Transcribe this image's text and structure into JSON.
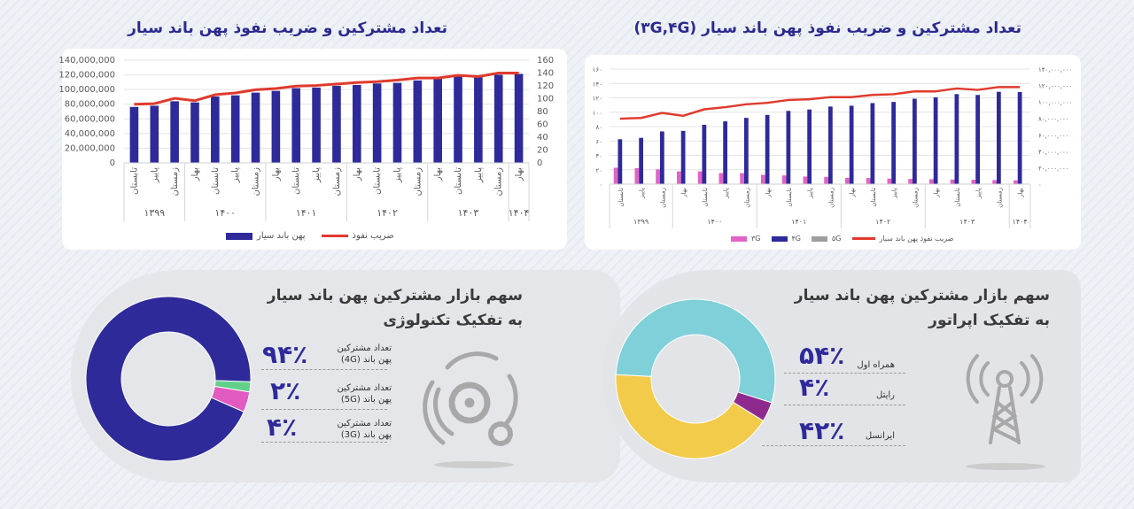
{
  "titles": {
    "left_chart": "تعداد مشترکین و ضریب نفوذ پهن باند سیار",
    "right_chart": "تعداد مشترکین و ضریب نفوذ پهن باند سیار (۳G,۴G)"
  },
  "colors": {
    "bar_total": "#2e2a9a",
    "line": "#e03a2c",
    "g3": "#e064c6",
    "g4": "#2e2a9a",
    "g5": "#9e9e9e",
    "title": "#2b2a8f",
    "teal": "#7fd0d8",
    "purple": "#8e2a8e",
    "yellow": "#f2cb4a",
    "green": "#62d08a",
    "pink": "#e25bc0"
  },
  "chart_data": [
    {
      "type": "bar+line",
      "title": "تعداد مشترکین و ضریب نفوذ پهن باند سیار",
      "categories": [
        "تابستان",
        "پاییز",
        "زمستان",
        "بهار",
        "تابستان",
        "پاییز",
        "زمستان",
        "بهار",
        "تابستان",
        "پاییز",
        "زمستان",
        "بهار",
        "تابستان",
        "پاییز",
        "زمستان",
        "بهار",
        "تابستان",
        "پاییز",
        "زمستان",
        "بهار"
      ],
      "groups": [
        {
          "label": "۱۳۹۹",
          "count": 3
        },
        {
          "label": "۱۴۰۰",
          "count": 4
        },
        {
          "label": "۱۴۰۱",
          "count": 4
        },
        {
          "label": "۱۴۰۲",
          "count": 4
        },
        {
          "label": "۱۴۰۳",
          "count": 4
        },
        {
          "label": "۱۴۰۴",
          "count": 1
        }
      ],
      "left_axis": {
        "range": [
          0,
          140000000
        ],
        "ticks": [
          "0",
          "20,000,000",
          "40,000,000",
          "60,000,000",
          "80,000,000",
          "100,000,000",
          "120,000,000",
          "140,000,000"
        ]
      },
      "right_axis": {
        "range": [
          0,
          160
        ],
        "ticks": [
          "0",
          "20",
          "40",
          "60",
          "80",
          "100",
          "120",
          "140",
          "160"
        ]
      },
      "series": [
        {
          "name": "پهن باند سیار",
          "type": "bar",
          "axis": "left",
          "color": "#2e2a9a",
          "values": [
            76300000,
            77900000,
            84000000,
            82400000,
            90500000,
            92100000,
            95800000,
            98200000,
            101900000,
            102700000,
            105100000,
            106300000,
            108300000,
            109100000,
            112400000,
            114500000,
            117700000,
            116900000,
            120100000,
            121300000
          ]
        },
        {
          "name": "ضریب نفوذ",
          "type": "line",
          "axis": "right",
          "color": "#e03a2c",
          "values": [
            91.4,
            92.3,
            100.6,
            96.9,
            106.2,
            109,
            114,
            115.8,
            119.7,
            120.6,
            122.9,
            125.2,
            126.6,
            129,
            132.2,
            132.2,
            136.4,
            134.5,
            140,
            140
          ]
        }
      ],
      "grid": true,
      "legend": "bottom"
    },
    {
      "type": "bar+line",
      "title": "تعداد مشترکین و ضریب نفوذ پهن باند سیار (۳G,۴G)",
      "categories": [
        "تابستان",
        "پاییز",
        "زمستان",
        "بهار",
        "تابستان",
        "پاییز",
        "زمستان",
        "بهار",
        "تابستان",
        "پاییز",
        "زمستان",
        "بهار",
        "تابستان",
        "پاییز",
        "زمستان",
        "بهار",
        "تابستان",
        "پاییز",
        "زمستان",
        "بهار"
      ],
      "groups": [
        {
          "label": "۱۳۹۹",
          "count": 3
        },
        {
          "label": "۱۴۰۰",
          "count": 4
        },
        {
          "label": "۱۴۰۱",
          "count": 4
        },
        {
          "label": "۱۴۰۲",
          "count": 4
        },
        {
          "label": "۱۴۰۳",
          "count": 4
        },
        {
          "label": "۱۴۰۴",
          "count": 1
        }
      ],
      "left_axis": {
        "range": [
          0,
          160
        ],
        "ticks": [
          "۰",
          "۲۰",
          "۴۰",
          "۶۰",
          "۸۰",
          "۱۰۰",
          "۱۲۰",
          "۱۴۰",
          "۱۶۰"
        ]
      },
      "right_axis": {
        "range": [
          0,
          140000000
        ],
        "ticks": [
          "۰",
          "۲۰,۰۰۰,۰۰۰",
          "۴۰,۰۰۰,۰۰۰",
          "۶۰,۰۰۰,۰۰۰",
          "۸۰,۰۰۰,۰۰۰",
          "۱۰۰,۰۰۰,۰۰۰",
          "۱۲۰,۰۰۰,۰۰۰",
          "۱۴۰,۰۰۰,۰۰۰"
        ]
      },
      "series": [
        {
          "name": "۳G",
          "type": "bar",
          "axis": "right",
          "color": "#e064c6",
          "values": [
            20000000,
            19400000,
            18000000,
            15500000,
            15500000,
            13400000,
            13400000,
            11300000,
            10600000,
            9200000,
            8800000,
            7700000,
            7400000,
            6700000,
            6300000,
            6000000,
            5600000,
            5300000,
            4900000,
            4600000
          ]
        },
        {
          "name": "۴G",
          "type": "bar",
          "axis": "right",
          "color": "#2e2a9a",
          "values": [
            54600000,
            56300000,
            64100000,
            64800000,
            72200000,
            76400000,
            80600000,
            84200000,
            89100000,
            90800000,
            94400000,
            95400000,
            98600000,
            100000000,
            103900000,
            105600000,
            109500000,
            108500000,
            112300000,
            112000000
          ]
        },
        {
          "name": "۵G",
          "type": "bar",
          "axis": "right",
          "color": "#9e9e9e",
          "values": [
            0,
            0,
            0,
            0,
            0,
            0,
            0,
            0,
            0,
            0,
            0,
            0,
            0,
            0,
            0,
            0,
            0,
            0,
            0,
            500000
          ]
        },
        {
          "name": "ضریب نفوذ پهن باند سیار",
          "type": "line",
          "axis": "left",
          "color": "#e03a2c",
          "values": [
            91,
            92,
            99,
            95,
            104,
            107,
            111,
            113,
            117,
            118,
            121,
            121,
            124,
            125,
            129,
            129,
            133,
            131,
            135,
            135
          ]
        }
      ],
      "grid": true,
      "legend": "bottom"
    },
    {
      "type": "pie",
      "title": "سهم بازار مشترکین پهن باند سیار",
      "subtitle": "به تفکیک تکنولوژی",
      "slices": [
        {
          "pct": "۹۴٪",
          "label_1": "تعداد مشترکین",
          "label_2": "پهن باند (4G)",
          "value": 94,
          "color": "#2e2a9a"
        },
        {
          "pct": "۲٪",
          "label_1": "تعداد مشترکین",
          "label_2": "پهن باند (5G)",
          "value": 2,
          "color": "#62d08a"
        },
        {
          "pct": "۴٪",
          "label_1": "تعداد مشترکین",
          "label_2": "پهن باند (3G)",
          "value": 4,
          "color": "#e25bc0"
        }
      ]
    },
    {
      "type": "pie",
      "title": "سهم بازار مشترکین پهن باند سیار",
      "subtitle": "به تفکیک اپراتور",
      "slices": [
        {
          "pct": "۵۴٪",
          "label": "همراه اول",
          "value": 54,
          "color": "#7fd0d8"
        },
        {
          "pct": "۴٪",
          "label": "رایتل",
          "value": 4,
          "color": "#8e2a8e"
        },
        {
          "pct": "۴۲٪",
          "label": "ایرانسل",
          "value": 42,
          "color": "#f2cb4a"
        }
      ]
    }
  ],
  "icons": {
    "tech": "gears-signal-icon",
    "operator": "cell-tower-icon"
  }
}
